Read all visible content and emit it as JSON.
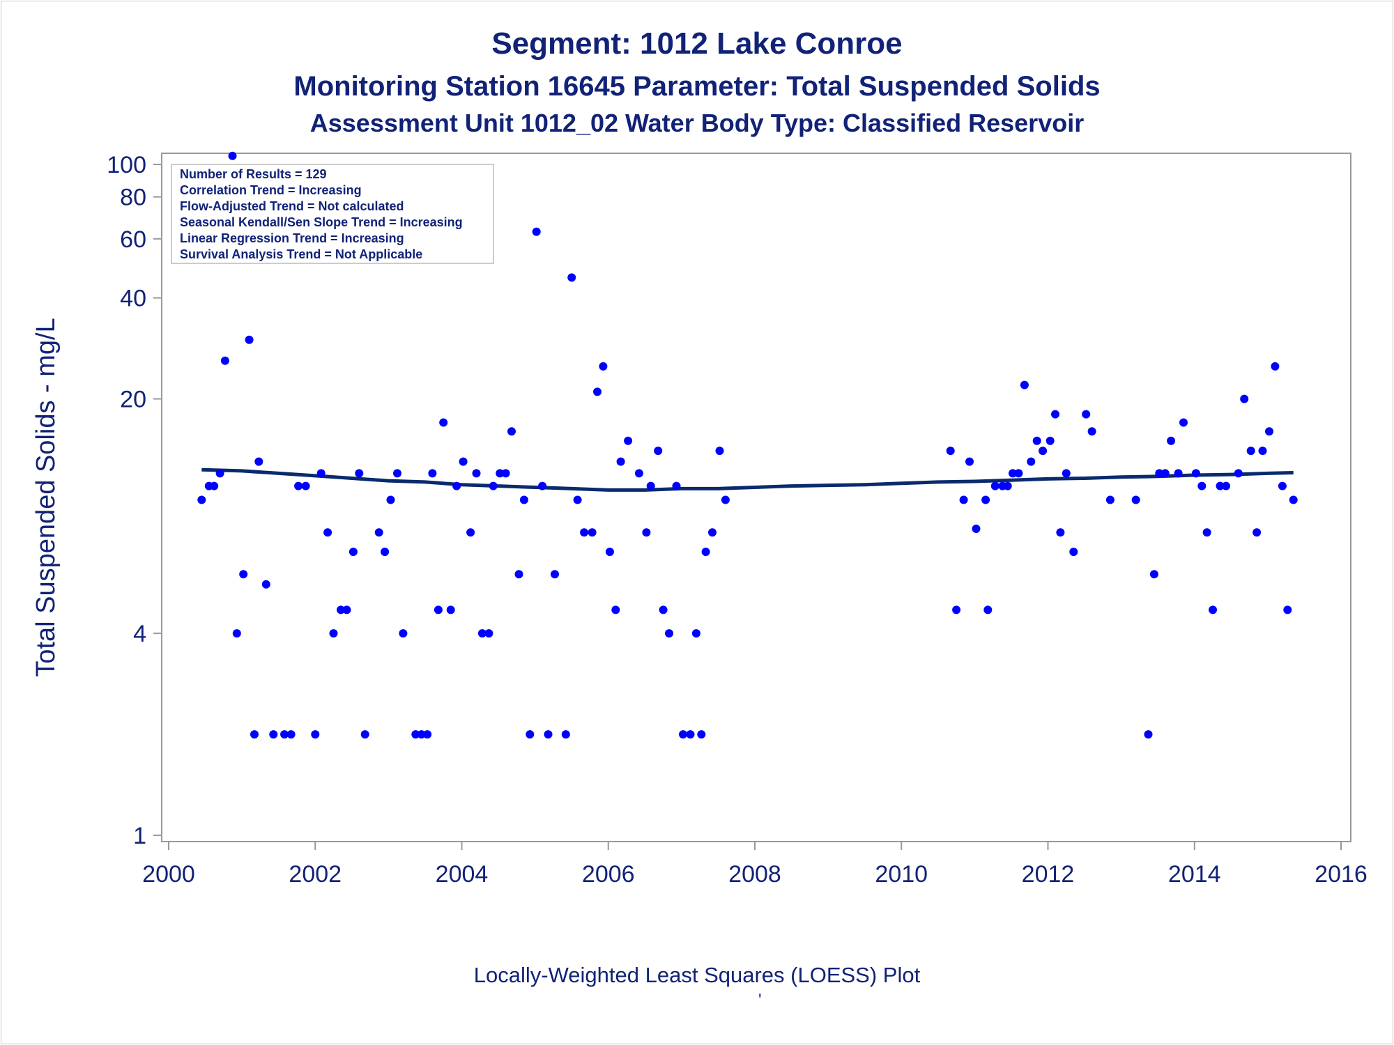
{
  "titles": {
    "line1": "Segment: 1012  Lake Conroe",
    "line2": "Monitoring Station 16645 Parameter: Total Suspended Solids",
    "line3": "Assessment Unit 1012_02   Water Body Type: Classified Reservoir"
  },
  "footnote": "Locally-Weighted Least Squares (LOESS) Plot",
  "footmark": "'",
  "stats_box": [
    "Number of Results = 129",
    "Correlation Trend = Increasing",
    "Flow-Adjusted Trend = Not calculated",
    "Seasonal Kendall/Sen Slope Trend = Increasing",
    "Linear Regression Trend = Increasing",
    "Survival Analysis Trend = Not Applicable"
  ],
  "colors": {
    "points": "#0000ff",
    "loess": "#0a2a6e",
    "text": "#112277",
    "axis": "#999999"
  },
  "chart_data": {
    "type": "scatter",
    "xlabel": "",
    "ylabel": "Total Suspended Solids - mg/L",
    "xlim": [
      2000,
      2016
    ],
    "ylim": [
      1,
      100
    ],
    "yscale": "log",
    "grid": false,
    "legend": "top-left",
    "x_ticks": [
      2000,
      2002,
      2004,
      2006,
      2008,
      2010,
      2012,
      2014,
      2016
    ],
    "y_ticks": [
      1,
      4,
      20,
      40,
      60,
      80,
      100
    ],
    "series": [
      {
        "type": "scatter",
        "x": [
          2000.45,
          2000.55,
          2000.62,
          2000.7,
          2000.77,
          2000.87,
          2000.93,
          2001.02,
          2001.1,
          2001.17,
          2001.23,
          2001.33,
          2001.43,
          2001.58,
          2001.67,
          2001.77,
          2001.87,
          2002.0,
          2002.08,
          2002.17,
          2002.25,
          2002.35,
          2002.43,
          2002.52,
          2002.6,
          2002.68,
          2002.87,
          2002.95,
          2003.03,
          2003.12,
          2003.2,
          2003.37,
          2003.45,
          2003.53,
          2003.6,
          2003.68,
          2003.75,
          2003.85,
          2003.93,
          2004.02,
          2004.12,
          2004.2,
          2004.28,
          2004.37,
          2004.43,
          2004.52,
          2004.6,
          2004.68,
          2004.78,
          2004.85,
          2004.93,
          2005.02,
          2005.1,
          2005.18,
          2005.27,
          2005.42,
          2005.5,
          2005.58,
          2005.67,
          2005.78,
          2005.85,
          2005.93,
          2006.02,
          2006.1,
          2006.17,
          2006.27,
          2006.42,
          2006.52,
          2006.58,
          2006.68,
          2006.75,
          2006.83,
          2006.93,
          2007.02,
          2007.12,
          2007.2,
          2007.27,
          2007.33,
          2007.42,
          2007.52,
          2007.6,
          2010.67,
          2010.75,
          2010.85,
          2010.93,
          2011.02,
          2011.15,
          2011.18,
          2011.28,
          2011.38,
          2011.45,
          2011.52,
          2011.6,
          2011.68,
          2011.77,
          2011.85,
          2011.93,
          2012.03,
          2012.1,
          2012.17,
          2012.25,
          2012.35,
          2012.52,
          2012.6,
          2012.85,
          2013.2,
          2013.37,
          2013.45,
          2013.52,
          2013.6,
          2013.68,
          2013.78,
          2013.85,
          2014.02,
          2014.1,
          2014.17,
          2014.25,
          2014.35,
          2014.43,
          2014.6,
          2014.68,
          2014.77,
          2014.85,
          2014.93,
          2015.02,
          2015.1,
          2015.2,
          2015.27,
          2015.35
        ],
        "y": [
          10,
          11,
          11,
          12,
          26,
          106,
          4,
          6,
          30,
          2,
          13,
          5.6,
          2,
          2,
          2,
          11,
          11,
          2,
          12,
          8,
          4,
          4.7,
          4.7,
          7,
          12,
          2,
          8,
          7,
          10,
          12,
          4,
          2,
          2,
          2,
          12,
          4.7,
          17,
          4.7,
          11,
          13,
          8,
          12,
          4,
          4,
          11,
          12,
          12,
          16,
          6,
          10,
          2,
          63,
          11,
          2,
          6,
          2,
          46,
          10,
          8,
          8,
          21,
          25,
          7,
          4.7,
          13,
          15,
          12,
          8,
          11,
          14,
          4.7,
          4,
          11,
          2,
          2,
          4,
          2,
          7,
          8,
          14,
          10,
          14,
          4.7,
          10,
          13,
          8.2,
          10,
          4.7,
          11,
          11,
          11,
          12,
          12,
          22,
          13,
          15,
          14,
          15,
          18,
          8,
          12,
          7,
          18,
          16,
          10,
          10,
          2,
          6,
          12,
          12,
          15,
          12,
          17,
          12,
          11,
          8,
          4.7,
          11,
          11,
          12,
          20,
          14,
          8,
          14,
          16,
          25,
          11,
          4.7,
          10
        ]
      },
      {
        "type": "line",
        "name": "LOESS",
        "x": [
          2000.45,
          2001.0,
          2001.5,
          2002.0,
          2002.5,
          2003.0,
          2003.5,
          2004.0,
          2004.5,
          2005.0,
          2005.5,
          2006.0,
          2006.5,
          2007.0,
          2007.5,
          2008.0,
          2008.5,
          2009.0,
          2009.5,
          2010.0,
          2010.5,
          2011.0,
          2011.5,
          2012.0,
          2012.5,
          2013.0,
          2013.5,
          2014.0,
          2014.5,
          2015.0,
          2015.35
        ],
        "y": [
          12.3,
          12.2,
          12.0,
          11.8,
          11.6,
          11.4,
          11.3,
          11.1,
          11.0,
          10.9,
          10.8,
          10.7,
          10.7,
          10.8,
          10.8,
          10.9,
          11.0,
          11.05,
          11.1,
          11.2,
          11.3,
          11.35,
          11.45,
          11.55,
          11.6,
          11.7,
          11.75,
          11.85,
          11.9,
          12.0,
          12.05
        ]
      }
    ]
  }
}
